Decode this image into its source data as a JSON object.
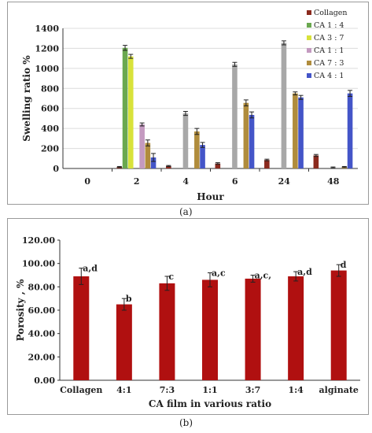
{
  "captions": {
    "a": "(a)",
    "b": "(b)"
  },
  "chart_data": [
    {
      "type": "bar",
      "title": "",
      "xlabel": "Hour",
      "ylabel": "Swelling ratio %",
      "ylim": [
        0,
        1400
      ],
      "yticks": [
        0,
        200,
        400,
        600,
        800,
        1000,
        1200,
        1400
      ],
      "categories": [
        "0",
        "2",
        "4",
        "6",
        "24",
        "48"
      ],
      "legend_position": "top-right",
      "series": [
        {
          "name": "Collagen",
          "color": "#8b2a1e",
          "values": [
            0,
            15,
            25,
            50,
            85,
            130
          ],
          "errors": [
            0,
            5,
            5,
            8,
            8,
            10
          ]
        },
        {
          "name": "CA 1 : 4",
          "color": "#6aa84f",
          "values": [
            0,
            1205,
            null,
            null,
            null,
            null
          ],
          "errors": [
            0,
            25,
            0,
            0,
            0,
            0
          ]
        },
        {
          "name": "CA 3 : 7",
          "color": "#d8e23a",
          "values": [
            0,
            1120,
            null,
            null,
            null,
            null
          ],
          "errors": [
            0,
            20,
            0,
            0,
            0,
            0
          ]
        },
        {
          "name": "CA 1 : 1",
          "color": "#c49ac0",
          "values": [
            0,
            440,
            null,
            null,
            null,
            null
          ],
          "errors": [
            0,
            15,
            0,
            0,
            0,
            0
          ]
        },
        {
          "name": "CA 7 : 3",
          "color": "#b08c3c",
          "values": [
            0,
            255,
            370,
            655,
            750,
            15
          ],
          "errors": [
            0,
            30,
            30,
            30,
            15,
            5
          ]
        },
        {
          "name": "CA 4 : 1",
          "color": "#4455c8",
          "values": [
            0,
            110,
            235,
            535,
            710,
            750
          ],
          "errors": [
            0,
            40,
            25,
            30,
            20,
            30
          ]
        },
        {
          "name": "",
          "color": "#a8a8a8",
          "values": [
            0,
            null,
            550,
            1040,
            1255,
            10
          ],
          "errors": [
            0,
            0,
            20,
            20,
            20,
            5
          ]
        }
      ]
    },
    {
      "type": "bar",
      "title": "",
      "xlabel": "CA film in various ratio",
      "ylabel": "Porosity , %",
      "ylim": [
        0,
        120
      ],
      "yticks": [
        "0.00",
        "20.00",
        "40.00",
        "60.00",
        "80.00",
        "100.00",
        "120.00"
      ],
      "categories": [
        "Collagen",
        "4:1",
        "7:3",
        "1:1",
        "3:7",
        "1:4",
        "alginate"
      ],
      "color": "#b01010",
      "values": [
        89,
        65,
        83,
        86,
        87,
        89,
        94
      ],
      "errors": [
        7,
        5,
        6,
        6,
        3,
        4,
        5
      ],
      "annotations": [
        "a,d",
        "b",
        "c",
        "a,c",
        "a,c,",
        "a,d",
        "d"
      ]
    }
  ]
}
